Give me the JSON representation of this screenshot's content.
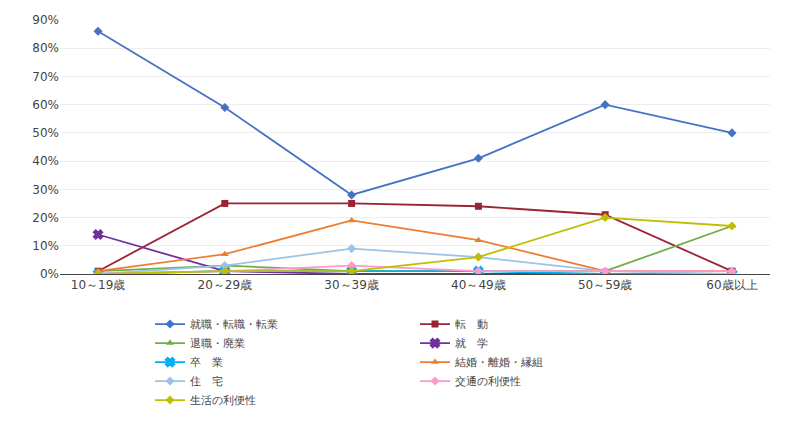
{
  "chart_data": {
    "type": "line",
    "categories": [
      "10～19歳",
      "20～29歳",
      "30～39歳",
      "40～49歳",
      "50～59歳",
      "60歳以上"
    ],
    "series": [
      {
        "name": "就職・転職・転業",
        "color": "#4472C4",
        "marker": "diamond",
        "values": [
          86,
          59,
          28,
          41,
          60,
          50
        ]
      },
      {
        "name": "転　動",
        "color": "#9B2335",
        "marker": "square",
        "values": [
          1,
          25,
          25,
          24,
          21,
          1
        ]
      },
      {
        "name": "退職・廃業",
        "color": "#70AD47",
        "marker": "triangle-up",
        "values": [
          1,
          3,
          1,
          1,
          1,
          17
        ]
      },
      {
        "name": "就　学",
        "color": "#7030A0",
        "marker": "x",
        "values": [
          14,
          1,
          0,
          0,
          0,
          0
        ]
      },
      {
        "name": "卒　業",
        "color": "#00B0F0",
        "marker": "x",
        "values": [
          0,
          1,
          1,
          1,
          0,
          0
        ]
      },
      {
        "name": "結婚・離婚・縁組",
        "color": "#ED7D31",
        "marker": "triangle-up",
        "values": [
          1,
          7,
          19,
          12,
          1,
          1
        ]
      },
      {
        "name": "住　宅",
        "color": "#9DC3E6",
        "marker": "diamond",
        "values": [
          0,
          3,
          9,
          6,
          1,
          0
        ]
      },
      {
        "name": "交通の利便性",
        "color": "#FF99CC",
        "marker": "diamond",
        "values": [
          0,
          1,
          3,
          1,
          1,
          1
        ]
      },
      {
        "name": "生活の利便性",
        "color": "#BFBF00",
        "marker": "diamond",
        "values": [
          0,
          1,
          1,
          6,
          20,
          17
        ]
      }
    ],
    "ylim": [
      0,
      90
    ],
    "yticks": [
      {
        "value": 0,
        "label": "0%"
      },
      {
        "value": 10,
        "label": "10%"
      },
      {
        "value": 20,
        "label": "20%"
      },
      {
        "value": 30,
        "label": "30%"
      },
      {
        "value": 40,
        "label": "40%"
      },
      {
        "value": 50,
        "label": "50%"
      },
      {
        "value": 60,
        "label": "60%"
      },
      {
        "value": 70,
        "label": "70%"
      },
      {
        "value": 80,
        "label": "80%"
      },
      {
        "value": 90,
        "label": "90%"
      }
    ],
    "grid": true,
    "legend": "bottom"
  }
}
